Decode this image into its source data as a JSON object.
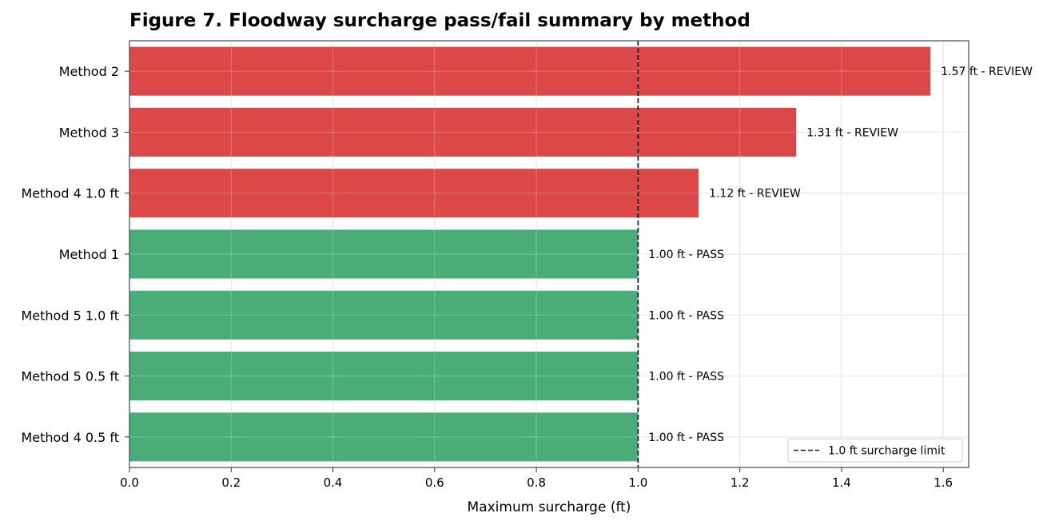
{
  "chart_data": {
    "type": "bar",
    "orientation": "horizontal",
    "title": "Figure 7. Floodway surcharge pass/fail summary by method",
    "xlabel": "Maximum surcharge (ft)",
    "ylabel": "",
    "xlim": [
      0,
      1.65
    ],
    "xticks": [
      0.0,
      0.2,
      0.4,
      0.6,
      0.8,
      1.0,
      1.2,
      1.4,
      1.6
    ],
    "xtick_labels": [
      "0.0",
      "0.2",
      "0.4",
      "0.6",
      "0.8",
      "1.0",
      "1.2",
      "1.4",
      "1.6"
    ],
    "grid": true,
    "categories": [
      "Method 2",
      "Method 3",
      "Method 4 1.0 ft",
      "Method 1",
      "Method 5 1.0 ft",
      "Method 5 0.5 ft",
      "Method 4 0.5 ft"
    ],
    "values": [
      1.575,
      1.311,
      1.119,
      1.0,
      1.0,
      1.0,
      1.0
    ],
    "status": [
      "REVIEW",
      "REVIEW",
      "REVIEW",
      "PASS",
      "PASS",
      "PASS",
      "PASS"
    ],
    "data_labels": [
      "1.57 ft - REVIEW",
      "1.31 ft - REVIEW",
      "1.12 ft - REVIEW",
      "1.00 ft - PASS",
      "1.00 ft - PASS",
      "1.00 ft - PASS",
      "1.00 ft - PASS"
    ],
    "colors": {
      "REVIEW": "#dc4848",
      "PASS": "#4aad78"
    },
    "reference_line": {
      "value": 1.0,
      "label": "1.0 ft surcharge limit",
      "style": "dashed",
      "color": "#1b2433"
    },
    "legend": {
      "entries": [
        "1.0 ft surcharge limit"
      ],
      "placement": "bottom-right"
    }
  }
}
